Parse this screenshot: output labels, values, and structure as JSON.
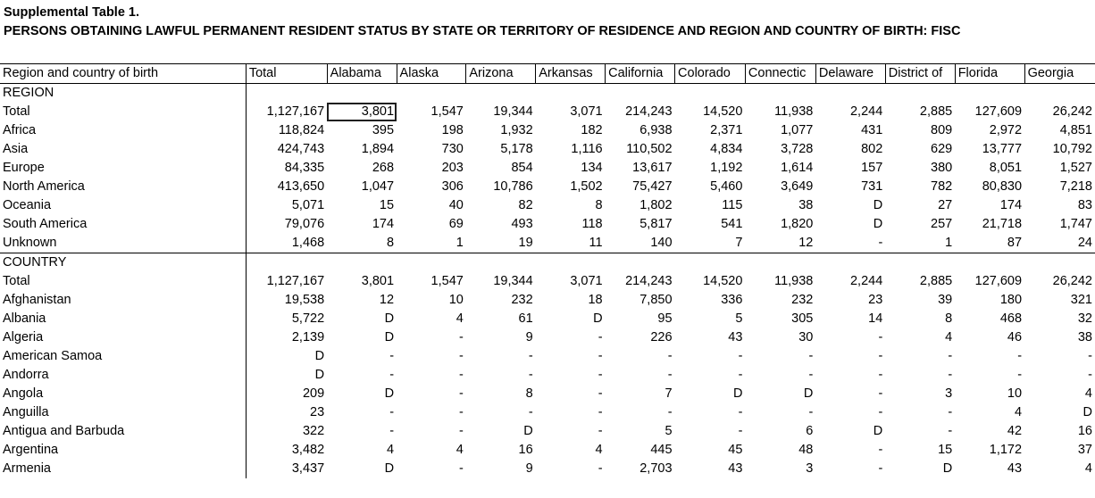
{
  "sheet": {
    "title1": "Supplemental Table 1.",
    "title2": "PERSONS OBTAINING LAWFUL PERMANENT RESIDENT STATUS BY STATE OR TERRITORY OF RESIDENCE AND REGION AND COUNTRY OF BIRTH: FISC"
  },
  "columns": [
    "Region and country of birth",
    "Total",
    "Alabama",
    "Alaska",
    "Arizona",
    "Arkansas",
    "California",
    "Colorado",
    "Connectic",
    "Delaware",
    "District of",
    "Florida",
    "Georgia"
  ],
  "rows": [
    {
      "label": "REGION",
      "section": true,
      "values": [
        "",
        "",
        "",
        "",
        "",
        "",
        "",
        "",
        "",
        "",
        "",
        ""
      ]
    },
    {
      "label": "Total",
      "indent": true,
      "values": [
        "1,127,167",
        "3,801",
        "1,547",
        "19,344",
        "3,071",
        "214,243",
        "14,520",
        "11,938",
        "2,244",
        "2,885",
        "127,609",
        "26,242"
      ]
    },
    {
      "label": "Africa",
      "values": [
        "118,824",
        "395",
        "198",
        "1,932",
        "182",
        "6,938",
        "2,371",
        "1,077",
        "431",
        "809",
        "2,972",
        "4,851"
      ]
    },
    {
      "label": "Asia",
      "values": [
        "424,743",
        "1,894",
        "730",
        "5,178",
        "1,116",
        "110,502",
        "4,834",
        "3,728",
        "802",
        "629",
        "13,777",
        "10,792"
      ]
    },
    {
      "label": "Europe",
      "values": [
        "84,335",
        "268",
        "203",
        "854",
        "134",
        "13,617",
        "1,192",
        "1,614",
        "157",
        "380",
        "8,051",
        "1,527"
      ]
    },
    {
      "label": "North America",
      "values": [
        "413,650",
        "1,047",
        "306",
        "10,786",
        "1,502",
        "75,427",
        "5,460",
        "3,649",
        "731",
        "782",
        "80,830",
        "7,218"
      ]
    },
    {
      "label": "Oceania",
      "values": [
        "5,071",
        "15",
        "40",
        "82",
        "8",
        "1,802",
        "115",
        "38",
        "D",
        "27",
        "174",
        "83"
      ]
    },
    {
      "label": "South America",
      "values": [
        "79,076",
        "174",
        "69",
        "493",
        "118",
        "5,817",
        "541",
        "1,820",
        "D",
        "257",
        "21,718",
        "1,747"
      ]
    },
    {
      "label": "Unknown",
      "values": [
        "1,468",
        "8",
        "1",
        "19",
        "11",
        "140",
        "7",
        "12",
        "-",
        "1",
        "87",
        "24"
      ]
    },
    {
      "label": "COUNTRY",
      "section": true,
      "values": [
        "",
        "",
        "",
        "",
        "",
        "",
        "",
        "",
        "",
        "",
        "",
        ""
      ]
    },
    {
      "label": "Total",
      "indent": true,
      "values": [
        "1,127,167",
        "3,801",
        "1,547",
        "19,344",
        "3,071",
        "214,243",
        "14,520",
        "11,938",
        "2,244",
        "2,885",
        "127,609",
        "26,242"
      ]
    },
    {
      "label": "Afghanistan",
      "values": [
        "19,538",
        "12",
        "10",
        "232",
        "18",
        "7,850",
        "336",
        "232",
        "23",
        "39",
        "180",
        "321"
      ]
    },
    {
      "label": "Albania",
      "values": [
        "5,722",
        "D",
        "4",
        "61",
        "D",
        "95",
        "5",
        "305",
        "14",
        "8",
        "468",
        "32"
      ]
    },
    {
      "label": "Algeria",
      "values": [
        "2,139",
        "D",
        "-",
        "9",
        "-",
        "226",
        "43",
        "30",
        "-",
        "4",
        "46",
        "38"
      ]
    },
    {
      "label": "American Samoa",
      "values": [
        "D",
        "-",
        "-",
        "-",
        "-",
        "-",
        "-",
        "-",
        "-",
        "-",
        "-",
        "-"
      ]
    },
    {
      "label": "Andorra",
      "values": [
        "D",
        "-",
        "-",
        "-",
        "-",
        "-",
        "-",
        "-",
        "-",
        "-",
        "-",
        "-"
      ]
    },
    {
      "label": "Angola",
      "values": [
        "209",
        "D",
        "-",
        "8",
        "-",
        "7",
        "D",
        "D",
        "-",
        "3",
        "10",
        "4"
      ]
    },
    {
      "label": "Anguilla",
      "values": [
        "23",
        "-",
        "-",
        "-",
        "-",
        "-",
        "-",
        "-",
        "-",
        "-",
        "4",
        "D"
      ]
    },
    {
      "label": "Antigua and Barbuda",
      "values": [
        "322",
        "-",
        "-",
        "D",
        "-",
        "5",
        "-",
        "6",
        "D",
        "-",
        "42",
        "16"
      ]
    },
    {
      "label": "Argentina",
      "values": [
        "3,482",
        "4",
        "4",
        "16",
        "4",
        "445",
        "45",
        "48",
        "-",
        "15",
        "1,172",
        "37"
      ]
    },
    {
      "label": "Armenia",
      "values": [
        "3,437",
        "D",
        "-",
        "9",
        "-",
        "2,703",
        "43",
        "3",
        "-",
        "D",
        "43",
        "4"
      ]
    }
  ]
}
